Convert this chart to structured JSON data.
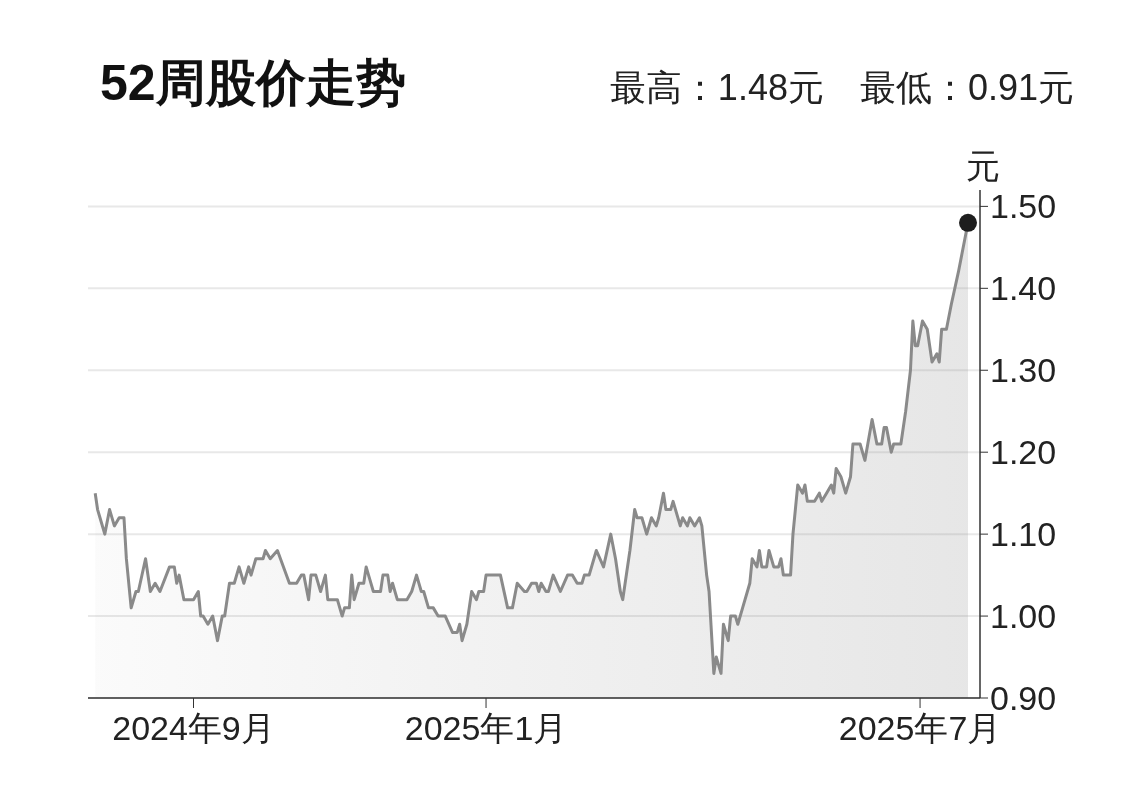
{
  "chart_data": {
    "type": "area",
    "title": "52周股价走势",
    "subtitle": "最高：1.48元　最低：0.91元",
    "ylabel": "元",
    "xlim": [
      "2024-07-19",
      "2025-07-26"
    ],
    "xticks": [
      {
        "value": "2024-09",
        "label": "2024年9月"
      },
      {
        "value": "2025-01",
        "label": "2025年1月"
      },
      {
        "value": "2025-07",
        "label": "2025年7月"
      }
    ],
    "ylim": [
      0.9,
      1.52
    ],
    "yticks": [
      {
        "value": 0.9,
        "label": "0.90"
      },
      {
        "value": 1.0,
        "label": "1.00"
      },
      {
        "value": 1.1,
        "label": "1.10"
      },
      {
        "value": 1.2,
        "label": "1.20"
      },
      {
        "value": 1.3,
        "label": "1.30"
      },
      {
        "value": 1.4,
        "label": "1.40"
      },
      {
        "value": 1.5,
        "label": "1.50"
      }
    ],
    "grid": "y",
    "series": [
      {
        "color": "#8a8a8a",
        "x": [
          "2024-07-22",
          "2024-07-23",
          "2024-07-24",
          "2024-07-26",
          "2024-07-28",
          "2024-07-30",
          "2024-08-01",
          "2024-08-03",
          "2024-08-04",
          "2024-08-06",
          "2024-08-08",
          "2024-08-09",
          "2024-08-12",
          "2024-08-14",
          "2024-08-16",
          "2024-08-18",
          "2024-08-22",
          "2024-08-24",
          "2024-08-25",
          "2024-08-26",
          "2024-08-28",
          "2024-09-01",
          "2024-09-03",
          "2024-09-04",
          "2024-09-05",
          "2024-09-07",
          "2024-09-09",
          "2024-09-11",
          "2024-09-13",
          "2024-09-14",
          "2024-09-16",
          "2024-09-18",
          "2024-09-20",
          "2024-09-22",
          "2024-09-24",
          "2024-09-25",
          "2024-09-27",
          "2024-09-30",
          "2024-10-01",
          "2024-10-03",
          "2024-10-06",
          "2024-10-11",
          "2024-10-14",
          "2024-10-16",
          "2024-10-17",
          "2024-10-19",
          "2024-10-20",
          "2024-10-22",
          "2024-10-24",
          "2024-10-26",
          "2024-10-27",
          "2024-10-29",
          "2024-10-31",
          "2024-11-02",
          "2024-11-03",
          "2024-11-05",
          "2024-11-06",
          "2024-11-07",
          "2024-11-09",
          "2024-11-11",
          "2024-11-12",
          "2024-11-13",
          "2024-11-15",
          "2024-11-18",
          "2024-11-19",
          "2024-11-21",
          "2024-11-22",
          "2024-11-23",
          "2024-11-25",
          "2024-11-29",
          "2024-12-01",
          "2024-12-03",
          "2024-12-05",
          "2024-12-06",
          "2024-12-08",
          "2024-12-10",
          "2024-12-12",
          "2024-12-15",
          "2024-12-18",
          "2024-12-20",
          "2024-12-21",
          "2024-12-22",
          "2024-12-24",
          "2024-12-26",
          "2024-12-28",
          "2024-12-29",
          "2024-12-31",
          "2025-01-01",
          "2025-01-07",
          "2025-01-10",
          "2025-01-12",
          "2025-01-14",
          "2025-01-17",
          "2025-01-18",
          "2025-01-20",
          "2025-01-22",
          "2025-01-23",
          "2025-01-24",
          "2025-01-26",
          "2025-01-27",
          "2025-01-29",
          "2025-02-01",
          "2025-02-04",
          "2025-02-06",
          "2025-02-08",
          "2025-02-10",
          "2025-02-11",
          "2025-02-13",
          "2025-02-16",
          "2025-02-19",
          "2025-02-22",
          "2025-02-24",
          "2025-02-26",
          "2025-02-27",
          "2025-03-02",
          "2025-03-04",
          "2025-03-05",
          "2025-03-07",
          "2025-03-09",
          "2025-03-11",
          "2025-03-13",
          "2025-03-14",
          "2025-03-16",
          "2025-03-17",
          "2025-03-19",
          "2025-03-20",
          "2025-03-23",
          "2025-03-24",
          "2025-03-26",
          "2025-03-27",
          "2025-03-29",
          "2025-03-31",
          "2025-04-01",
          "2025-04-02",
          "2025-04-03",
          "2025-04-04",
          "2025-04-06",
          "2025-04-07",
          "2025-04-09",
          "2025-04-10",
          "2025-04-12",
          "2025-04-13",
          "2025-04-15",
          "2025-04-16",
          "2025-04-18",
          "2025-04-21",
          "2025-04-22",
          "2025-04-24",
          "2025-04-25",
          "2025-04-26",
          "2025-04-28",
          "2025-04-29",
          "2025-05-01",
          "2025-05-03",
          "2025-05-04",
          "2025-05-05",
          "2025-05-08",
          "2025-05-09",
          "2025-05-11",
          "2025-05-13",
          "2025-05-14",
          "2025-05-15",
          "2025-05-18",
          "2025-05-20",
          "2025-05-21",
          "2025-05-23",
          "2025-05-25",
          "2025-05-26",
          "2025-05-27",
          "2025-05-29",
          "2025-05-31",
          "2025-06-02",
          "2025-06-03",
          "2025-06-06",
          "2025-06-08",
          "2025-06-11",
          "2025-06-13",
          "2025-06-15",
          "2025-06-16",
          "2025-06-17",
          "2025-06-19",
          "2025-06-20",
          "2025-06-23",
          "2025-06-25",
          "2025-06-27",
          "2025-06-28",
          "2025-06-29",
          "2025-06-30",
          "2025-07-02",
          "2025-07-04",
          "2025-07-06",
          "2025-07-08",
          "2025-07-09",
          "2025-07-10",
          "2025-07-12",
          "2025-07-14",
          "2025-07-17",
          "2025-07-21"
        ],
        "values": [
          1.15,
          1.13,
          1.12,
          1.1,
          1.13,
          1.11,
          1.12,
          1.12,
          1.07,
          1.01,
          1.03,
          1.03,
          1.07,
          1.03,
          1.04,
          1.03,
          1.06,
          1.06,
          1.04,
          1.05,
          1.02,
          1.02,
          1.03,
          1.0,
          1.0,
          0.99,
          1.0,
          0.97,
          1.0,
          1.0,
          1.04,
          1.04,
          1.06,
          1.04,
          1.06,
          1.05,
          1.07,
          1.07,
          1.08,
          1.07,
          1.08,
          1.04,
          1.04,
          1.05,
          1.05,
          1.02,
          1.05,
          1.05,
          1.03,
          1.05,
          1.02,
          1.02,
          1.02,
          1.0,
          1.01,
          1.01,
          1.05,
          1.02,
          1.04,
          1.04,
          1.06,
          1.05,
          1.03,
          1.03,
          1.05,
          1.05,
          1.03,
          1.04,
          1.02,
          1.02,
          1.03,
          1.05,
          1.03,
          1.03,
          1.01,
          1.01,
          1.0,
          1.0,
          0.98,
          0.98,
          0.99,
          0.97,
          0.99,
          1.03,
          1.02,
          1.03,
          1.03,
          1.05,
          1.05,
          1.01,
          1.01,
          1.04,
          1.03,
          1.03,
          1.04,
          1.04,
          1.03,
          1.04,
          1.03,
          1.03,
          1.05,
          1.03,
          1.05,
          1.05,
          1.04,
          1.04,
          1.05,
          1.05,
          1.08,
          1.06,
          1.1,
          1.07,
          1.03,
          1.02,
          1.08,
          1.13,
          1.12,
          1.12,
          1.1,
          1.12,
          1.11,
          1.12,
          1.15,
          1.13,
          1.13,
          1.14,
          1.11,
          1.12,
          1.11,
          1.12,
          1.11,
          1.12,
          1.11,
          1.08,
          1.05,
          1.03,
          0.93,
          0.95,
          0.93,
          0.99,
          0.97,
          1.0,
          1.0,
          0.99,
          1.01,
          1.04,
          1.07,
          1.06,
          1.08,
          1.06,
          1.06,
          1.08,
          1.06,
          1.06,
          1.07,
          1.05,
          1.05,
          1.1,
          1.16,
          1.15,
          1.16,
          1.14,
          1.14,
          1.15,
          1.14,
          1.15,
          1.16,
          1.15,
          1.18,
          1.17,
          1.15,
          1.17,
          1.21,
          1.21,
          1.19,
          1.24,
          1.21,
          1.21,
          1.23,
          1.23,
          1.2,
          1.21,
          1.21,
          1.25,
          1.3,
          1.36,
          1.33,
          1.33,
          1.36,
          1.35,
          1.31,
          1.32,
          1.31,
          1.35,
          1.35,
          1.38,
          1.42,
          1.48
        ]
      },
      {
        "type": "scatter",
        "color": "#1e1e1e",
        "marker": "circle",
        "x": [
          "2025-07-21"
        ],
        "values": [
          1.48
        ]
      }
    ]
  }
}
